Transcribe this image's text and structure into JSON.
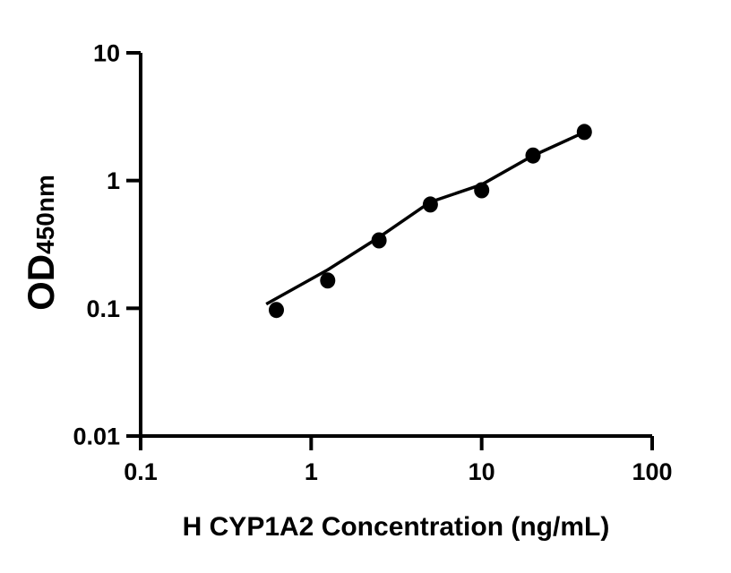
{
  "figure": {
    "background_color": "#ffffff",
    "ink_color": "#000000"
  },
  "chart_data": {
    "type": "scatter",
    "title": "",
    "xlabel": "H CYP1A2 Concentration (ng/mL)",
    "ylabel_main": "OD",
    "ylabel_sub": "450nm",
    "x_scale": "log10",
    "y_scale": "log10",
    "xlim": [
      0.1,
      100
    ],
    "ylim": [
      0.01,
      10
    ],
    "grid": false,
    "legend": false,
    "x_ticks": [
      {
        "value": 0.1,
        "label": "0.1"
      },
      {
        "value": 1,
        "label": "1"
      },
      {
        "value": 10,
        "label": "10"
      },
      {
        "value": 100,
        "label": "100"
      }
    ],
    "y_ticks": [
      {
        "value": 10,
        "label": "10"
      },
      {
        "value": 1,
        "label": "1"
      },
      {
        "value": 0.1,
        "label": "0.1"
      },
      {
        "value": 0.01,
        "label": "0.01"
      }
    ],
    "series": [
      {
        "name": "standard-points",
        "type": "scatter",
        "marker": "filled-circle",
        "color": "#000000",
        "points": [
          {
            "x": 0.625,
            "y": 0.097
          },
          {
            "x": 1.25,
            "y": 0.165
          },
          {
            "x": 2.5,
            "y": 0.34
          },
          {
            "x": 5,
            "y": 0.65
          },
          {
            "x": 10,
            "y": 0.84
          },
          {
            "x": 20,
            "y": 1.57
          },
          {
            "x": 40,
            "y": 2.4
          }
        ]
      },
      {
        "name": "fit-line",
        "type": "line",
        "color": "#000000",
        "points": [
          {
            "x": 0.545,
            "y": 0.108
          },
          {
            "x": 1.25,
            "y": 0.2
          },
          {
            "x": 2.5,
            "y": 0.36
          },
          {
            "x": 5,
            "y": 0.68
          },
          {
            "x": 10,
            "y": 0.93
          },
          {
            "x": 19.7,
            "y": 1.55
          },
          {
            "x": 40,
            "y": 2.39
          }
        ]
      }
    ]
  }
}
